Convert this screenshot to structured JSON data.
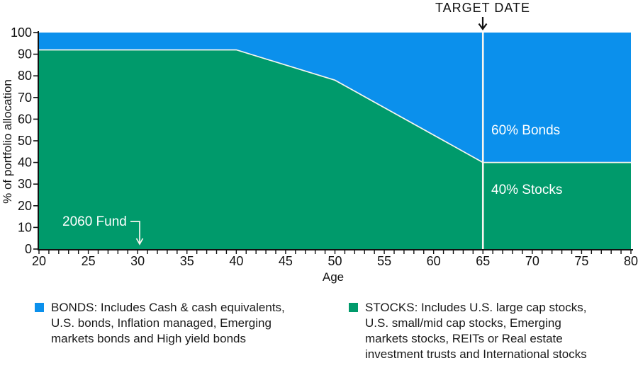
{
  "annotations": {
    "target_date_label": "TARGET DATE",
    "fund_label": "2060 Fund",
    "bonds_pct_label": "60% Bonds",
    "stocks_pct_label": "40% Stocks"
  },
  "axes": {
    "y_title": "% of portfolio allocation",
    "x_title": "Age"
  },
  "legend": {
    "bonds": {
      "color": "#0b90ec",
      "lines": [
        "BONDS: Includes Cash & cash equivalents,",
        "U.S. bonds, Inflation managed, Emerging",
        "markets bonds and High yield bonds"
      ]
    },
    "stocks": {
      "color": "#009a6b",
      "lines": [
        "STOCKS: Includes U.S. large cap stocks,",
        "U.S. small/mid cap stocks, Emerging",
        "markets stocks, REITs or Real estate",
        "investment trusts and International stocks"
      ]
    }
  },
  "chart_data": {
    "type": "area",
    "stacked": true,
    "title": "",
    "xlabel": "Age",
    "ylabel": "% of portfolio allocation",
    "xlim": [
      20,
      80
    ],
    "ylim": [
      0,
      100
    ],
    "x_major_ticks": [
      20,
      25,
      30,
      35,
      40,
      45,
      50,
      55,
      60,
      65,
      70,
      75,
      80
    ],
    "x_minor_tick_step": 1,
    "y_ticks": [
      0,
      10,
      20,
      30,
      40,
      50,
      60,
      70,
      80,
      90,
      100
    ],
    "grid": false,
    "legend_position": "bottom",
    "series": [
      {
        "name": "STOCKS",
        "color": "#009a6b",
        "x": [
          20,
          40,
          50,
          65,
          80
        ],
        "values": [
          92,
          92,
          78,
          40,
          40
        ]
      },
      {
        "name": "BONDS",
        "color": "#0b90ec",
        "x": [
          20,
          40,
          50,
          65,
          80
        ],
        "values": [
          8,
          8,
          22,
          60,
          60
        ]
      }
    ],
    "target_age": 65,
    "allocation_at_target": {
      "bonds_pct": 60,
      "stocks_pct": 40
    },
    "fund_marker_age": 30,
    "divider_line_color": "#f7f5ef"
  }
}
